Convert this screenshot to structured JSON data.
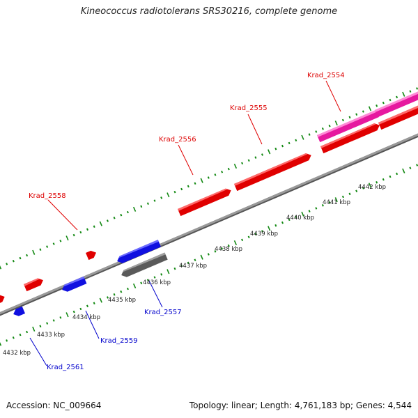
{
  "title": "Kineococcus radiotolerans SRS30216, complete genome",
  "accession": "Accession: NC_009664",
  "summary": "Topology: linear; Length: 4,761,183 bp; Genes: 4,544",
  "colors": {
    "forward_gene": "#ff0000",
    "forward_gene_alt": "#ff33bb",
    "reverse_gene": "#0000ff",
    "reverse_gene_alt": "#666666",
    "backbone": "#888888",
    "ticks": "#118811",
    "forward_label": "#dd0000",
    "reverse_label": "#0000cc"
  },
  "scale": {
    "unit": "kbp",
    "ticks": [
      {
        "label": "4432 kbp"
      },
      {
        "label": "4433 kbp"
      },
      {
        "label": "4434 kbp"
      },
      {
        "label": "4435 kbp"
      },
      {
        "label": "4436 kbp"
      },
      {
        "label": "4437 kbp"
      },
      {
        "label": "4438 kbp"
      },
      {
        "label": "4439 kbp"
      },
      {
        "label": "4440 kbp"
      },
      {
        "label": "4441 kbp"
      },
      {
        "label": "4442 kbp"
      }
    ]
  },
  "labels": {
    "krad_2554": "Krad_2554",
    "krad_2555": "Krad_2555",
    "krad_2556": "Krad_2556",
    "krad_2557": "Krad_2557",
    "krad_2558": "Krad_2558",
    "krad_2559": "Krad_2559",
    "krad_2561": "Krad_2561"
  }
}
